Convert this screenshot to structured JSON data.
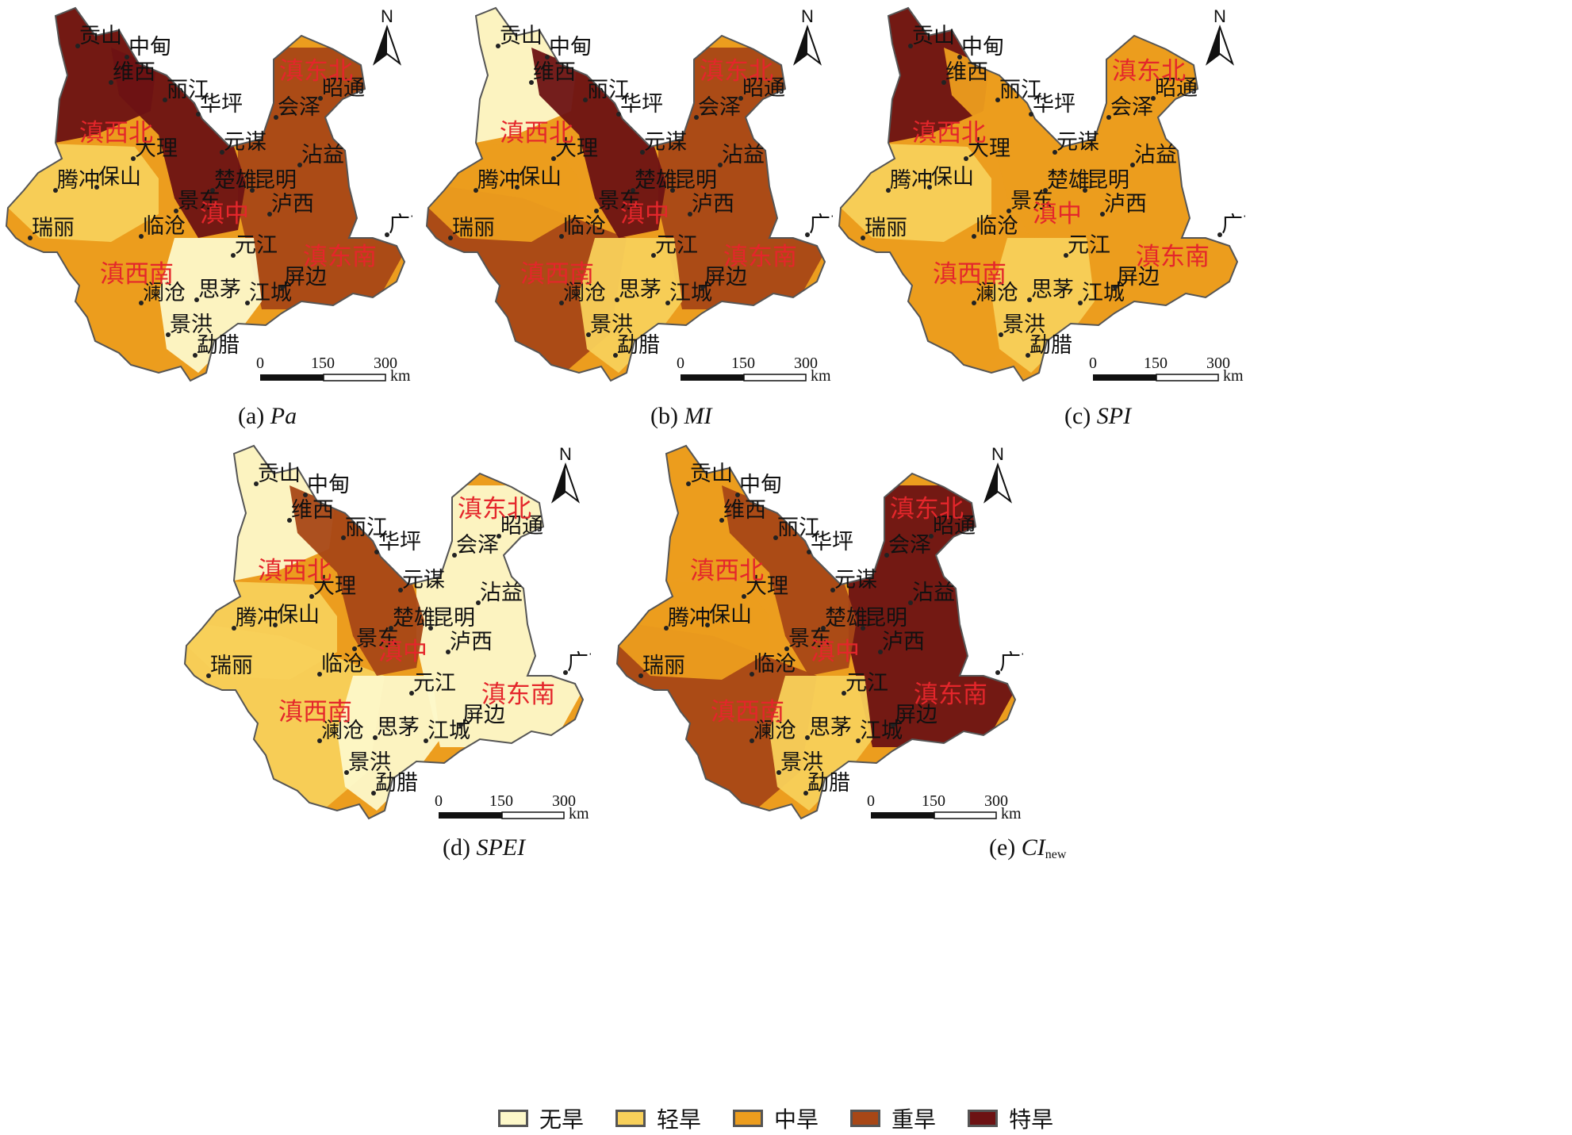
{
  "panels": [
    {
      "id": "a",
      "label": "(a) ",
      "index": "Pa",
      "sub": ""
    },
    {
      "id": "b",
      "label": "(b) ",
      "index": "MI",
      "sub": ""
    },
    {
      "id": "c",
      "label": "(c) ",
      "index": "SPI",
      "sub": ""
    },
    {
      "id": "d",
      "label": "(d) ",
      "index": "SPEI",
      "sub": ""
    },
    {
      "id": "e",
      "label": "(e) ",
      "index": "CI",
      "sub": "new"
    }
  ],
  "cities": [
    "贡山",
    "中甸",
    "维西",
    "丽江",
    "华坪",
    "大理",
    "元谋",
    "沾益",
    "会泽",
    "昭通",
    "腾冲",
    "保山",
    "楚雄",
    "昆明",
    "景东",
    "泸西",
    "瑞丽",
    "临沧",
    "元江",
    "广南",
    "屏边",
    "澜沧",
    "思茅",
    "江城",
    "景洪",
    "勐腊"
  ],
  "regions": [
    "滇西北",
    "滇东北",
    "滇中",
    "滇西南",
    "滇东南"
  ],
  "scale_bar": {
    "ticks": [
      "0",
      "150",
      "300"
    ],
    "unit": "km"
  },
  "north_label": "N",
  "legend": [
    {
      "label": "无旱",
      "color": "#fdf8c9"
    },
    {
      "label": "轻旱",
      "color": "#f8d05a"
    },
    {
      "label": "中旱",
      "color": "#ec9d1e"
    },
    {
      "label": "重旱",
      "color": "#a84716"
    },
    {
      "label": "特旱",
      "color": "#6d1213"
    }
  ],
  "drought_class_by_panel": {
    "a": {
      "northwest": "特旱",
      "central_corridor": "特旱",
      "east": "重旱",
      "west": "轻旱",
      "south_center": "无旱",
      "southwest": "中旱"
    },
    "b": {
      "northwest": "无旱",
      "central_corridor": "特旱",
      "east": "重旱",
      "west": "中旱",
      "south_center": "轻旱",
      "southwest": "重旱"
    },
    "c": {
      "northwest": "特旱",
      "central_corridor": "中旱",
      "east": "中旱",
      "west": "轻旱",
      "south_center": "轻旱",
      "southwest": "中旱"
    },
    "d": {
      "northwest": "无旱",
      "central_corridor": "重旱",
      "east": "无旱",
      "west": "轻旱",
      "south_center": "无旱",
      "southwest": "轻旱"
    },
    "e": {
      "northwest": "中旱",
      "central_corridor": "重旱",
      "east": "特旱",
      "west": "中旱",
      "south_center": "轻旱",
      "southwest": "重旱"
    }
  }
}
